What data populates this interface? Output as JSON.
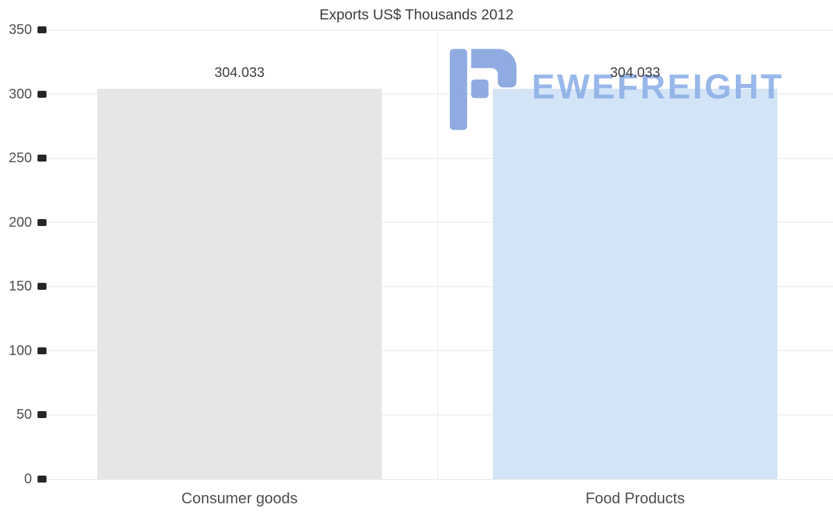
{
  "title": "Exports US$ Thousands 2012",
  "watermark": {
    "text": "EWEFREIGHT",
    "color": "#8fb0e8"
  },
  "colors": {
    "background": "#ffffff",
    "gridline": "#e6e6e6",
    "tick_mark": "#262626",
    "axis_label": "#4d4d4d",
    "title_text": "#3c3c3c",
    "bar_consumer_goods": "#e6e6e6",
    "bar_food_products": "#d4e4f7"
  },
  "chart_data": {
    "type": "bar",
    "title": "Exports US$ Thousands 2012",
    "categories": [
      "Consumer goods",
      "Food Products"
    ],
    "values": [
      304.033,
      304.033
    ],
    "value_labels": [
      "304.033",
      "304.033"
    ],
    "bar_colors": [
      "#e6e6e6",
      "#d4e4f7"
    ],
    "xlabel": "",
    "ylabel": "",
    "ylim": [
      0,
      350
    ],
    "yticks": [
      0,
      50,
      100,
      150,
      200,
      250,
      300,
      350
    ],
    "grid": "horizontal",
    "legend": "none"
  }
}
